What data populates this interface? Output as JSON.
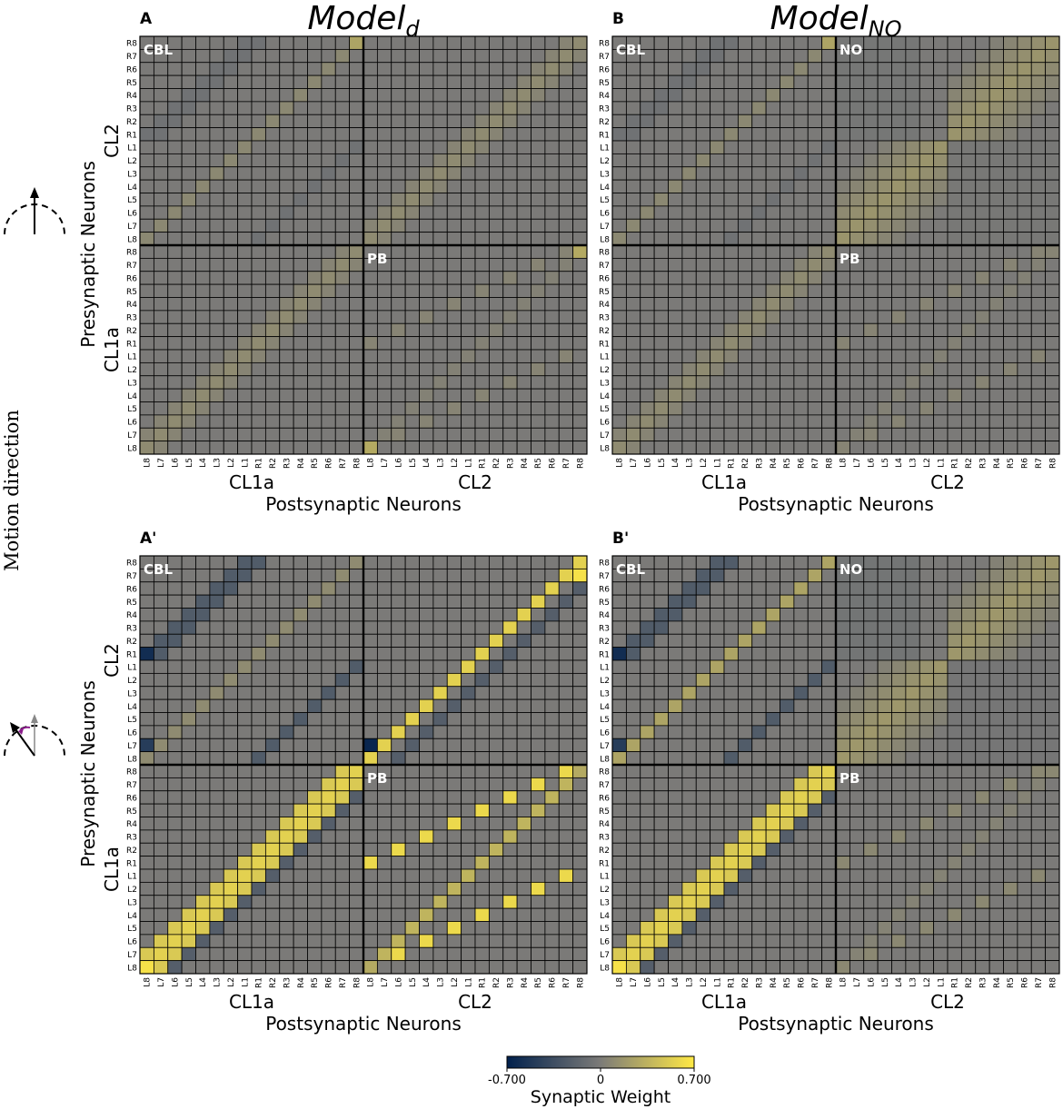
{
  "figure": {
    "side_label": "Motion direction",
    "model_titles": [
      {
        "base": "Model",
        "sub": "d"
      },
      {
        "base": "Model",
        "sub": "NO"
      }
    ],
    "axis_labels": {
      "presynaptic": "Presynaptic Neurons",
      "postsynaptic": "Postsynaptic Neurons",
      "cl2": "CL2",
      "cl1a": "CL1a"
    },
    "row_ticks": [
      "R8",
      "R7",
      "R6",
      "R5",
      "R4",
      "R3",
      "R2",
      "R1",
      "L1",
      "L2",
      "L3",
      "L4",
      "L5",
      "L6",
      "L7",
      "L8",
      "R8",
      "R7",
      "R6",
      "R5",
      "R4",
      "R3",
      "R2",
      "R1",
      "L1",
      "L2",
      "L3",
      "L4",
      "L5",
      "L6",
      "L7",
      "L8"
    ],
    "col_ticks": [
      "L8",
      "L7",
      "L6",
      "L5",
      "L4",
      "L3",
      "L2",
      "L1",
      "R1",
      "R2",
      "R3",
      "R4",
      "R5",
      "R6",
      "R7",
      "R8",
      "L8",
      "L7",
      "L6",
      "L5",
      "L4",
      "L3",
      "L2",
      "L1",
      "R1",
      "R2",
      "R3",
      "R4",
      "R5",
      "R6",
      "R7",
      "R8"
    ],
    "colorbar": {
      "label": "Synaptic Weight",
      "min_label": "-0.700",
      "mid_label": "0",
      "max_label": "0.700",
      "min": -0.7,
      "max": 0.7,
      "colors": [
        "#00204c",
        "#7c7b78",
        "#ffe945"
      ]
    },
    "cell_base_color": "#7b7a78",
    "grid_color": "#000000"
  },
  "chart_data": [
    {
      "type": "heatmap",
      "panel_label": "A",
      "title": "Model_d",
      "quadrant_labels": {
        "top_left": "CBL",
        "top_right": "",
        "bottom_right": "PB"
      },
      "xlabel": "Postsynaptic Neurons",
      "ylabel": "Presynaptic Neurons",
      "value_range": [
        -0.7,
        0.7
      ],
      "blocks": {
        "cbl": {
          "diag_pos": 0.08,
          "diag_neg": -0.07,
          "corner": 0.26
        },
        "cl2_cl2": {
          "band_center": 0.1,
          "band_side": 0.06
        },
        "cl1a_cl1a": {
          "band_center": 0.1,
          "band_side": 0.06
        },
        "pb": {
          "diag": 0.06,
          "corner": 0.3
        }
      }
    },
    {
      "type": "heatmap",
      "panel_label": "B",
      "title": "Model_NO",
      "quadrant_labels": {
        "top_left": "CBL",
        "top_right": "NO",
        "bottom_right": "PB"
      },
      "xlabel": "Postsynaptic Neurons",
      "ylabel": "Presynaptic Neurons",
      "value_range": [
        -0.7,
        0.7
      ],
      "blocks": {
        "cbl": {
          "diag_pos": 0.08,
          "diag_neg": -0.07,
          "corner": 0.26
        },
        "no": {
          "peak": 0.16,
          "edge_neg": -0.08
        },
        "cl1a_cl1a": {
          "band_center": 0.1,
          "band_side": 0.06
        },
        "pb": {
          "diag": 0.06,
          "corner": 0.06
        }
      }
    },
    {
      "type": "heatmap",
      "panel_label": "A'",
      "title": "",
      "quadrant_labels": {
        "top_left": "CBL",
        "top_right": "",
        "bottom_right": "PB"
      },
      "xlabel": "Postsynaptic Neurons",
      "ylabel": "Presynaptic Neurons",
      "value_range": [
        -0.7,
        0.7
      ],
      "blocks": {
        "cbl": {
          "diag_pos": 0.1,
          "diag_neg": -0.24,
          "strong_neg": -0.6
        },
        "cl2_cl2": {
          "diag": 0.55,
          "adj_neg": -0.22,
          "strong_neg": -0.65,
          "corner": 0.65
        },
        "cl1a_cl1a": {
          "diag": 0.55,
          "adj_neg": -0.22,
          "corner": 0.65
        },
        "pb": {
          "diag": 0.6,
          "corner": 0.3
        }
      }
    },
    {
      "type": "heatmap",
      "panel_label": "B'",
      "title": "",
      "quadrant_labels": {
        "top_left": "CBL",
        "top_right": "NO",
        "bottom_right": "PB"
      },
      "xlabel": "Postsynaptic Neurons",
      "ylabel": "Presynaptic Neurons",
      "value_range": [
        -0.7,
        0.7
      ],
      "blocks": {
        "cbl": {
          "diag_pos": 0.26,
          "diag_neg": -0.24,
          "strong_neg": -0.6
        },
        "no": {
          "peak": 0.18,
          "edge_neg": -0.12
        },
        "cl1a_cl1a": {
          "diag": 0.55,
          "adj_neg": -0.22,
          "corner": 0.65
        },
        "pb": {
          "diag": 0.08,
          "corner": 0.08
        }
      }
    }
  ]
}
